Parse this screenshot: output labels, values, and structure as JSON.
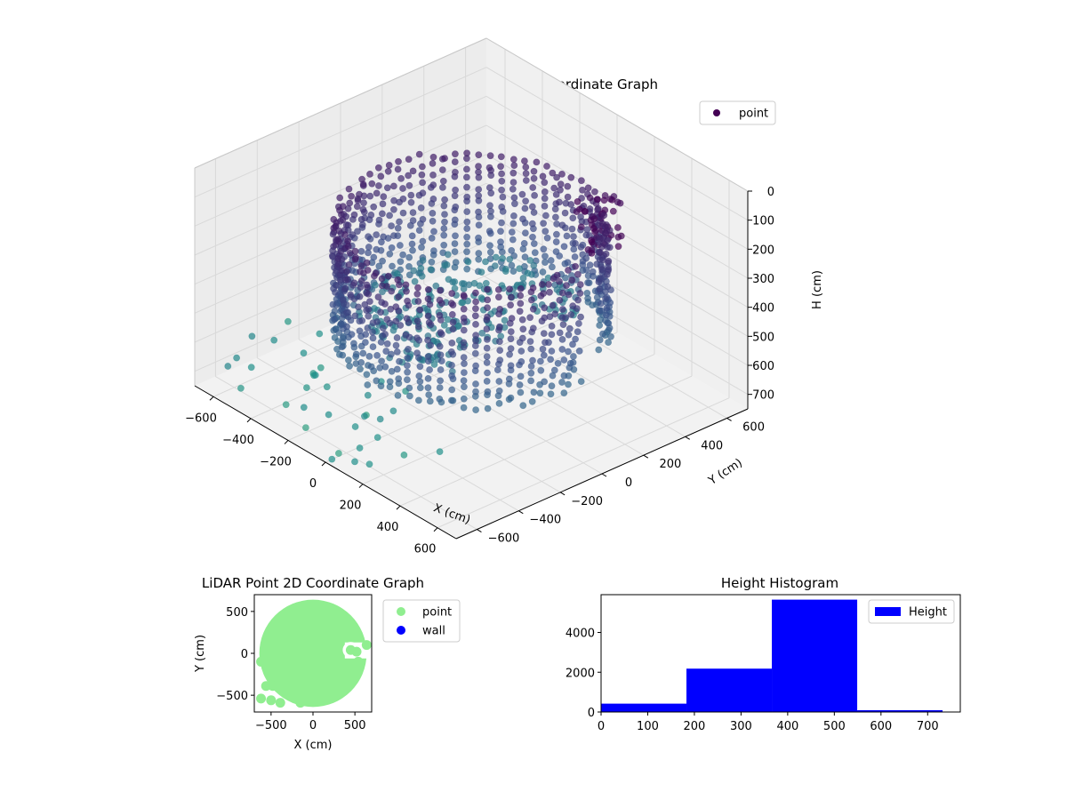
{
  "chart_data": [
    {
      "type": "scatter",
      "projection": "3d",
      "title": "LiDAR Point 3D Coordinate Graph",
      "xlabel": "X (cm)",
      "ylabel": "Y (cm)",
      "zlabel": "H (cm)",
      "xlim": [
        -700,
        700
      ],
      "ylim": [
        -700,
        700
      ],
      "zlim": [
        750,
        0
      ],
      "z_axis_inverted": true,
      "x_ticks": [
        -600,
        -400,
        -200,
        0,
        200,
        400,
        600
      ],
      "y_ticks": [
        -600,
        -400,
        -200,
        0,
        200,
        400,
        600
      ],
      "z_ticks": [
        0,
        100,
        200,
        300,
        400,
        500,
        600,
        700
      ],
      "colormap": "viridis",
      "grid": true,
      "legend": {
        "entries": [
          "point"
        ],
        "placement": "top-right"
      },
      "description_shape": "ring of points, radius about 500 cm, heights mostly 250-550 cm, dark cluster near top, scattered low points in front",
      "series": [
        {
          "name": "point",
          "ring_radius_cm": 480,
          "height_range_cm": [
            150,
            560
          ],
          "low_scatter_points": [
            {
              "x": -620,
              "y": -500,
              "z": 720
            },
            {
              "x": -520,
              "y": -640,
              "z": 710
            },
            {
              "x": -300,
              "y": -620,
              "z": 690
            },
            {
              "x": -150,
              "y": -660,
              "z": 700
            },
            {
              "x": 60,
              "y": -690,
              "z": 700
            },
            {
              "x": 180,
              "y": -650,
              "z": 705
            },
            {
              "x": 220,
              "y": -520,
              "z": 700
            },
            {
              "x": -60,
              "y": -450,
              "z": 690
            },
            {
              "x": -400,
              "y": -400,
              "z": 690
            },
            {
              "x": 300,
              "y": -420,
              "z": 690
            }
          ]
        }
      ]
    },
    {
      "type": "scatter",
      "title": "LiDAR Point 2D Coordinate Graph",
      "xlabel": "X (cm)",
      "ylabel": "Y (cm)",
      "xlim": [
        -700,
        700
      ],
      "ylim": [
        -700,
        700
      ],
      "x_ticks": [
        -500,
        0,
        500
      ],
      "y_ticks": [
        -500,
        0,
        500
      ],
      "legend": {
        "entries": [
          "point",
          "wall"
        ],
        "placement": "outside-right"
      },
      "series": [
        {
          "name": "point",
          "color": "#90ee90",
          "filled_disc_center": [
            0,
            0
          ],
          "filled_disc_radius": 640
        },
        {
          "name": "wall",
          "color": "#0000ff",
          "values": []
        }
      ]
    },
    {
      "type": "bar",
      "subtype": "histogram",
      "title": "Height Histogram",
      "xlabel": "",
      "ylabel": "",
      "color": "#0000ff",
      "bin_edges": [
        0,
        183,
        366,
        549,
        732
      ],
      "counts": [
        420,
        2180,
        5650,
        90
      ],
      "xlim": [
        0,
        770
      ],
      "ylim": [
        0,
        5900
      ],
      "x_ticks": [
        0,
        100,
        200,
        300,
        400,
        500,
        600,
        700
      ],
      "y_ticks": [
        0,
        2000,
        4000
      ],
      "legend": {
        "entries": [
          "Height"
        ],
        "placement": "top-right"
      }
    }
  ]
}
